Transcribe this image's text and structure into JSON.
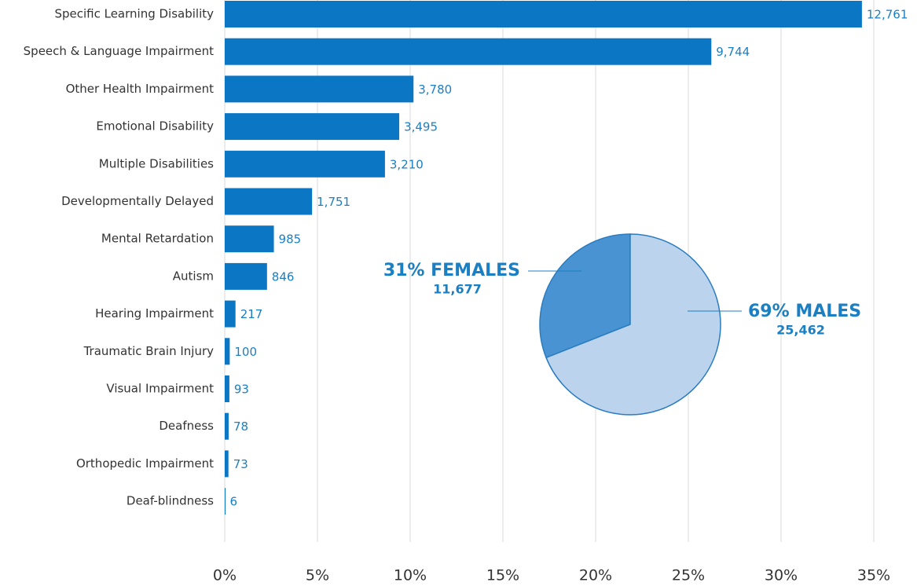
{
  "chart_data": [
    {
      "type": "bar",
      "orientation": "horizontal",
      "categories": [
        "Specific Learning Disability",
        "Speech & Language Impairment",
        "Other Health Impairment",
        "Emotional Disability",
        "Multiple Disabilities",
        "Developmentally Delayed",
        "Mental Retardation",
        "Autism",
        "Hearing Impairment",
        "Traumatic Brain Injury",
        "Visual Impairment",
        "Deafness",
        "Orthopedic Impairment",
        "Deaf-blindness"
      ],
      "values": [
        34.36,
        26.24,
        10.18,
        9.41,
        8.64,
        4.71,
        2.65,
        2.28,
        0.58,
        0.27,
        0.25,
        0.21,
        0.2,
        0.02
      ],
      "count_labels": [
        "12,761",
        "9,744",
        "3,780",
        "3,495",
        "3,210",
        "1,751",
        "985",
        "846",
        "217",
        "100",
        "93",
        "78",
        "73",
        "6"
      ],
      "color": "#0a76c4",
      "xlim": [
        0,
        35
      ],
      "xticks": [
        {
          "value": 0,
          "label": "0%"
        },
        {
          "value": 5,
          "label": "5%"
        },
        {
          "value": 10,
          "label": "10%"
        },
        {
          "value": 15,
          "label": "15%"
        },
        {
          "value": 20,
          "label": "20%"
        },
        {
          "value": 25,
          "label": "25%"
        },
        {
          "value": 30,
          "label": "30%"
        },
        {
          "value": 35,
          "label": "35%"
        }
      ],
      "grid": true
    },
    {
      "type": "pie",
      "labels": [
        "31% FEMALES",
        "69% MALES"
      ],
      "values": [
        31,
        69
      ],
      "count_labels": [
        "11,677",
        "25,462"
      ],
      "colors": [
        "#4a93d2",
        "#bcd3ee"
      ]
    }
  ]
}
